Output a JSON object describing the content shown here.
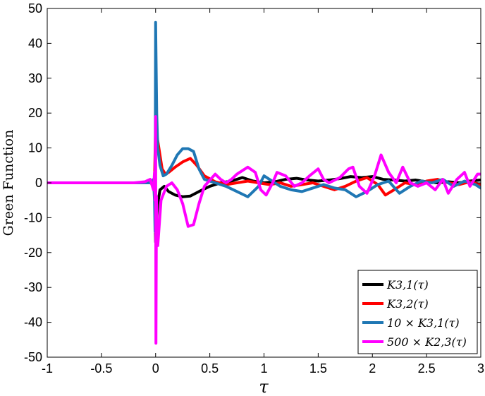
{
  "chart_data": {
    "type": "line",
    "title": "",
    "xlabel": "τ",
    "ylabel": "Green Function",
    "xlim": [
      -1,
      3
    ],
    "ylim": [
      -50,
      50
    ],
    "x_ticks": [
      "-1",
      "-0.5",
      "0",
      "0.5",
      "1",
      "1.5",
      "2",
      "2.5",
      "3"
    ],
    "y_ticks": [
      "50",
      "40",
      "30",
      "20",
      "10",
      "0",
      "-10",
      "-20",
      "-30",
      "-40",
      "-50"
    ],
    "grid": false,
    "legend_position": "bottom-right",
    "series": [
      {
        "name": "K3,1(τ)",
        "color": "#000000",
        "points": [
          [
            -1,
            0
          ],
          [
            -0.05,
            0
          ],
          [
            -0.02,
            0.5
          ],
          [
            -0.01,
            -1
          ],
          [
            0,
            -17
          ],
          [
            0.01,
            -10
          ],
          [
            0.02,
            -6
          ],
          [
            0.04,
            -2
          ],
          [
            0.08,
            -1
          ],
          [
            0.12,
            -2.5
          ],
          [
            0.18,
            -3.5
          ],
          [
            0.25,
            -4
          ],
          [
            0.32,
            -3.8
          ],
          [
            0.4,
            -2.5
          ],
          [
            0.5,
            -1
          ],
          [
            0.6,
            0
          ],
          [
            0.7,
            0.5
          ],
          [
            0.8,
            1.5
          ],
          [
            0.9,
            0.5
          ],
          [
            1.0,
            0
          ],
          [
            1.1,
            0.3
          ],
          [
            1.2,
            1
          ],
          [
            1.3,
            1.3
          ],
          [
            1.4,
            0.8
          ],
          [
            1.5,
            0.5
          ],
          [
            1.6,
            0.8
          ],
          [
            1.7,
            1.2
          ],
          [
            1.8,
            1.8
          ],
          [
            1.9,
            1.5
          ],
          [
            2.0,
            1.8
          ],
          [
            2.1,
            1
          ],
          [
            2.2,
            0.8
          ],
          [
            2.3,
            0.5
          ],
          [
            2.4,
            0.8
          ],
          [
            2.5,
            0.3
          ],
          [
            2.6,
            0
          ],
          [
            2.7,
            0.3
          ],
          [
            2.8,
            0
          ],
          [
            2.9,
            0.5
          ],
          [
            3.0,
            0.8
          ]
        ]
      },
      {
        "name": "K3,2(τ)",
        "color": "#ff0000",
        "points": [
          [
            -1,
            0
          ],
          [
            -0.05,
            0
          ],
          [
            -0.02,
            -0.5
          ],
          [
            -0.01,
            1
          ],
          [
            0,
            16
          ],
          [
            0.01,
            14
          ],
          [
            0.03,
            10
          ],
          [
            0.06,
            4
          ],
          [
            0.09,
            2.5
          ],
          [
            0.12,
            3
          ],
          [
            0.18,
            4.5
          ],
          [
            0.25,
            6
          ],
          [
            0.32,
            7
          ],
          [
            0.38,
            5
          ],
          [
            0.45,
            2
          ],
          [
            0.55,
            0.3
          ],
          [
            0.65,
            -0.5
          ],
          [
            0.75,
            0
          ],
          [
            0.85,
            0.5
          ],
          [
            0.95,
            0
          ],
          [
            1.05,
            -0.5
          ],
          [
            1.15,
            0
          ],
          [
            1.25,
            -1
          ],
          [
            1.35,
            -0.5
          ],
          [
            1.45,
            0
          ],
          [
            1.55,
            -1
          ],
          [
            1.65,
            -2
          ],
          [
            1.75,
            -1
          ],
          [
            1.85,
            0.5
          ],
          [
            1.95,
            1.5
          ],
          [
            2.05,
            -0.5
          ],
          [
            2.12,
            -3.5
          ],
          [
            2.2,
            -2
          ],
          [
            2.3,
            0
          ],
          [
            2.4,
            -0.5
          ],
          [
            2.5,
            0.5
          ],
          [
            2.6,
            1
          ],
          [
            2.7,
            0
          ],
          [
            2.8,
            -0.5
          ],
          [
            2.9,
            0.3
          ],
          [
            3.0,
            -0.5
          ]
        ]
      },
      {
        "name": "10 × K3,1(τ)",
        "color": "#1f77b4",
        "points": [
          [
            -1,
            0
          ],
          [
            -0.05,
            0
          ],
          [
            -0.02,
            1
          ],
          [
            -0.01,
            -5
          ],
          [
            -0.005,
            -14
          ],
          [
            0,
            46
          ],
          [
            0.01,
            20
          ],
          [
            0.02,
            10
          ],
          [
            0.04,
            5
          ],
          [
            0.07,
            2
          ],
          [
            0.1,
            2.5
          ],
          [
            0.15,
            5
          ],
          [
            0.2,
            8
          ],
          [
            0.25,
            9.8
          ],
          [
            0.3,
            9.8
          ],
          [
            0.35,
            9
          ],
          [
            0.4,
            4
          ],
          [
            0.45,
            1
          ],
          [
            0.55,
            0
          ],
          [
            0.65,
            -1
          ],
          [
            0.75,
            -2.5
          ],
          [
            0.85,
            -4
          ],
          [
            0.95,
            -1
          ],
          [
            1.0,
            2
          ],
          [
            1.05,
            1
          ],
          [
            1.15,
            -1
          ],
          [
            1.25,
            -2
          ],
          [
            1.35,
            -2.5
          ],
          [
            1.45,
            -1.5
          ],
          [
            1.55,
            -0.5
          ],
          [
            1.65,
            -1.5
          ],
          [
            1.75,
            -2
          ],
          [
            1.85,
            -4
          ],
          [
            1.95,
            -2.5
          ],
          [
            2.05,
            -0.5
          ],
          [
            2.15,
            0.5
          ],
          [
            2.25,
            -3
          ],
          [
            2.35,
            -1
          ],
          [
            2.45,
            0.5
          ],
          [
            2.55,
            0
          ],
          [
            2.65,
            1
          ],
          [
            2.75,
            -1
          ],
          [
            2.85,
            0.5
          ],
          [
            2.95,
            -0.5
          ],
          [
            3.0,
            -1.5
          ]
        ]
      },
      {
        "name": "500 × K2,3(τ)",
        "color": "#ff00ff",
        "points": [
          [
            -1,
            0
          ],
          [
            -0.2,
            0
          ],
          [
            -0.1,
            0.3
          ],
          [
            -0.05,
            1
          ],
          [
            -0.02,
            -2
          ],
          [
            -0.01,
            3
          ],
          [
            -0.005,
            -5
          ],
          [
            0,
            19
          ],
          [
            0.003,
            -46
          ],
          [
            0.008,
            -4
          ],
          [
            0.012,
            -15
          ],
          [
            0.02,
            -18
          ],
          [
            0.05,
            -5
          ],
          [
            0.1,
            -1
          ],
          [
            0.15,
            0
          ],
          [
            0.2,
            -2
          ],
          [
            0.25,
            -6
          ],
          [
            0.3,
            -12.5
          ],
          [
            0.35,
            -12
          ],
          [
            0.4,
            -6
          ],
          [
            0.45,
            -1
          ],
          [
            0.55,
            2.5
          ],
          [
            0.6,
            1
          ],
          [
            0.65,
            0
          ],
          [
            0.7,
            1
          ],
          [
            0.75,
            2.5
          ],
          [
            0.85,
            4.5
          ],
          [
            0.92,
            3
          ],
          [
            0.97,
            -2
          ],
          [
            1.02,
            -3.5
          ],
          [
            1.08,
            0
          ],
          [
            1.12,
            3
          ],
          [
            1.2,
            2
          ],
          [
            1.28,
            -1
          ],
          [
            1.35,
            0
          ],
          [
            1.42,
            2
          ],
          [
            1.5,
            4
          ],
          [
            1.55,
            1
          ],
          [
            1.6,
            0
          ],
          [
            1.7,
            1.5
          ],
          [
            1.78,
            4
          ],
          [
            1.82,
            4.5
          ],
          [
            1.88,
            -1
          ],
          [
            1.95,
            -3
          ],
          [
            2.02,
            2
          ],
          [
            2.08,
            8
          ],
          [
            2.15,
            3
          ],
          [
            2.22,
            0
          ],
          [
            2.28,
            4.5
          ],
          [
            2.35,
            0
          ],
          [
            2.42,
            -1
          ],
          [
            2.5,
            0
          ],
          [
            2.58,
            -2
          ],
          [
            2.65,
            1
          ],
          [
            2.7,
            -3
          ],
          [
            2.78,
            1
          ],
          [
            2.85,
            3
          ],
          [
            2.9,
            -1
          ],
          [
            2.97,
            2.5
          ],
          [
            3.0,
            2.5
          ]
        ]
      }
    ]
  }
}
